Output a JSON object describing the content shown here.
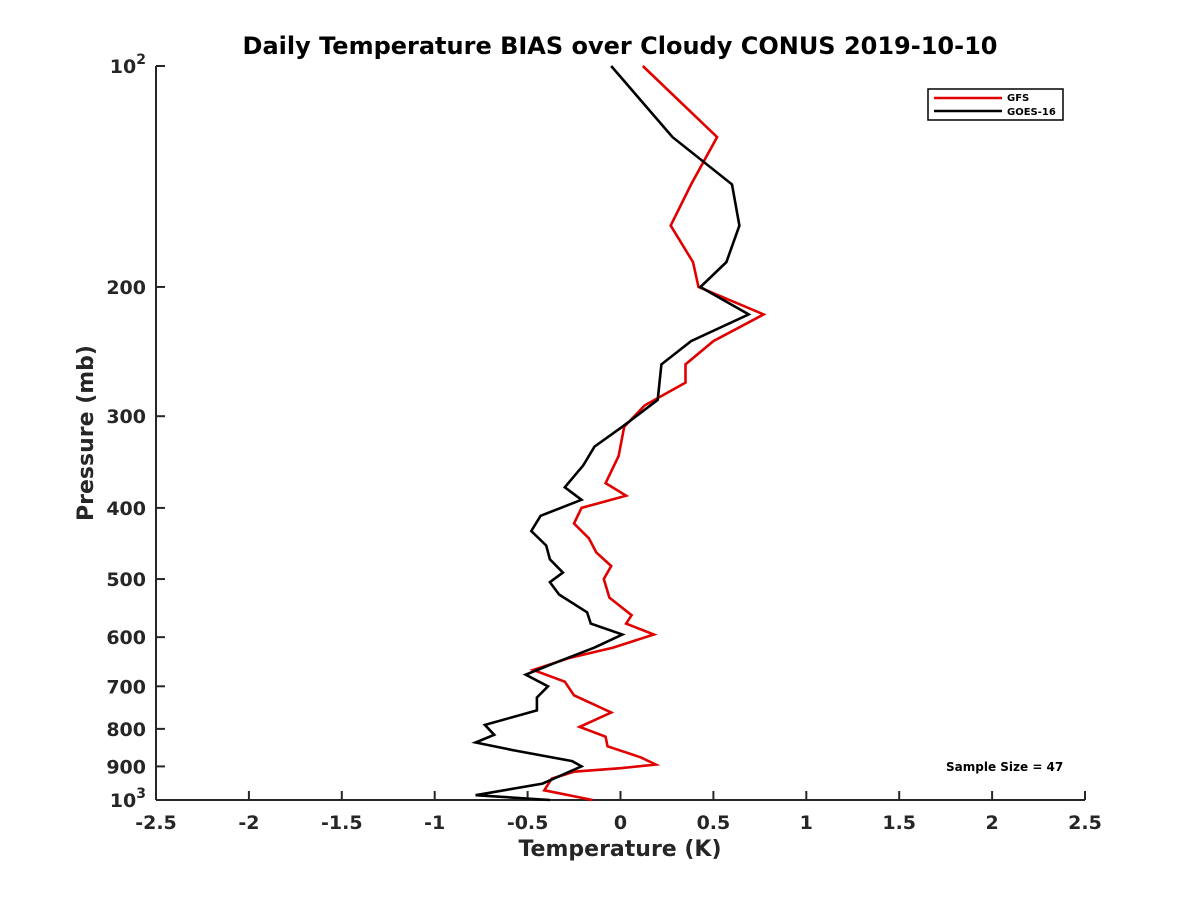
{
  "chart_data": {
    "type": "line",
    "title": "Daily Temperature BIAS over Cloudy CONUS 2019-10-10",
    "xlabel": "Temperature (K)",
    "ylabel": "Pressure (mb)",
    "xlim": [
      -2.5,
      2.5
    ],
    "ylim": [
      100,
      1000
    ],
    "y_scale": "log",
    "y_reversed": true,
    "grid": false,
    "legend_position": "top-right",
    "x_ticks": [
      "-2.5",
      "-2",
      "-1.5",
      "-1",
      "-0.5",
      "0",
      "0.5",
      "1",
      "1.5",
      "2",
      "2.5"
    ],
    "y_ticks": [
      {
        "value": 100,
        "base": "10",
        "exp": "2"
      },
      {
        "value": 200,
        "label": "200"
      },
      {
        "value": 300,
        "label": "300"
      },
      {
        "value": 400,
        "label": "400"
      },
      {
        "value": 500,
        "label": "500"
      },
      {
        "value": 600,
        "label": "600"
      },
      {
        "value": 700,
        "label": "700"
      },
      {
        "value": 800,
        "label": "800"
      },
      {
        "value": 900,
        "label": "900"
      },
      {
        "value": 1000,
        "base": "10",
        "exp": "3"
      }
    ],
    "annotation": "Sample Size = 47",
    "series": [
      {
        "name": "GFS",
        "color": "#e00000",
        "points": [
          [
            0.12,
            100
          ],
          [
            0.52,
            125
          ],
          [
            0.38,
            145
          ],
          [
            0.27,
            165
          ],
          [
            0.39,
            185
          ],
          [
            0.42,
            200
          ],
          [
            0.77,
            218
          ],
          [
            0.5,
            237
          ],
          [
            0.35,
            255
          ],
          [
            0.35,
            270
          ],
          [
            0.13,
            290
          ],
          [
            0.02,
            310
          ],
          [
            -0.01,
            340
          ],
          [
            -0.08,
            370
          ],
          [
            0.03,
            385
          ],
          [
            -0.21,
            400
          ],
          [
            -0.25,
            420
          ],
          [
            -0.17,
            440
          ],
          [
            -0.13,
            460
          ],
          [
            -0.05,
            480
          ],
          [
            -0.09,
            500
          ],
          [
            -0.06,
            530
          ],
          [
            0.06,
            560
          ],
          [
            0.03,
            575
          ],
          [
            0.18,
            595
          ],
          [
            -0.04,
            620
          ],
          [
            -0.27,
            640
          ],
          [
            -0.47,
            665
          ],
          [
            -0.3,
            690
          ],
          [
            -0.25,
            720
          ],
          [
            -0.05,
            760
          ],
          [
            -0.22,
            795
          ],
          [
            -0.08,
            820
          ],
          [
            -0.07,
            845
          ],
          [
            0.11,
            875
          ],
          [
            0.19,
            895
          ],
          [
            0.0,
            905
          ],
          [
            -0.25,
            915
          ],
          [
            -0.37,
            935
          ],
          [
            -0.41,
            970
          ],
          [
            -0.15,
            1000
          ]
        ]
      },
      {
        "name": "GOES-16",
        "color": "#000000",
        "points": [
          [
            -0.05,
            100
          ],
          [
            0.28,
            125
          ],
          [
            0.6,
            145
          ],
          [
            0.64,
            165
          ],
          [
            0.57,
            185
          ],
          [
            0.43,
            200
          ],
          [
            0.69,
            218
          ],
          [
            0.38,
            237
          ],
          [
            0.22,
            255
          ],
          [
            0.21,
            270
          ],
          [
            0.2,
            285
          ],
          [
            0.01,
            310
          ],
          [
            -0.14,
            330
          ],
          [
            -0.2,
            350
          ],
          [
            -0.3,
            375
          ],
          [
            -0.21,
            390
          ],
          [
            -0.43,
            410
          ],
          [
            -0.48,
            430
          ],
          [
            -0.4,
            450
          ],
          [
            -0.38,
            470
          ],
          [
            -0.31,
            490
          ],
          [
            -0.38,
            505
          ],
          [
            -0.33,
            525
          ],
          [
            -0.18,
            555
          ],
          [
            -0.16,
            575
          ],
          [
            0.01,
            595
          ],
          [
            -0.14,
            620
          ],
          [
            -0.35,
            650
          ],
          [
            -0.51,
            675
          ],
          [
            -0.39,
            700
          ],
          [
            -0.45,
            725
          ],
          [
            -0.45,
            755
          ],
          [
            -0.73,
            790
          ],
          [
            -0.68,
            815
          ],
          [
            -0.78,
            835
          ],
          [
            -0.58,
            855
          ],
          [
            -0.26,
            885
          ],
          [
            -0.21,
            900
          ],
          [
            -0.42,
            950
          ],
          [
            -0.78,
            985
          ],
          [
            -0.38,
            1000
          ]
        ]
      }
    ]
  }
}
